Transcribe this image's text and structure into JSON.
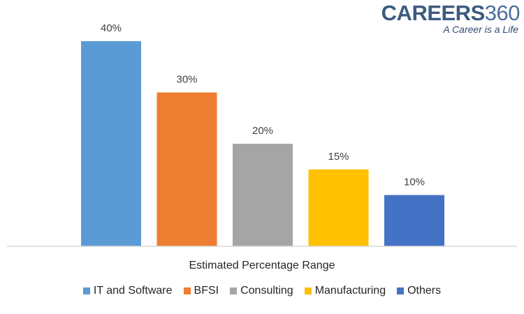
{
  "logo": {
    "brand": "CAREERS",
    "brand_number": "360",
    "tagline": "A Career is a Life"
  },
  "chart_data": {
    "type": "bar",
    "title": "",
    "xlabel": "Estimated Percentage Range",
    "ylabel": "",
    "ylim": [
      0,
      40
    ],
    "grid": false,
    "legend_position": "bottom",
    "categories": [
      "IT and Software",
      "BFSI",
      "Consulting",
      "Manufacturing",
      "Others"
    ],
    "values": [
      40,
      30,
      20,
      15,
      10
    ],
    "data_labels": [
      "40%",
      "30%",
      "20%",
      "15%",
      "10%"
    ],
    "colors": [
      "#5b9bd5",
      "#ed7d31",
      "#a5a5a5",
      "#ffc000",
      "#4472c4"
    ]
  }
}
